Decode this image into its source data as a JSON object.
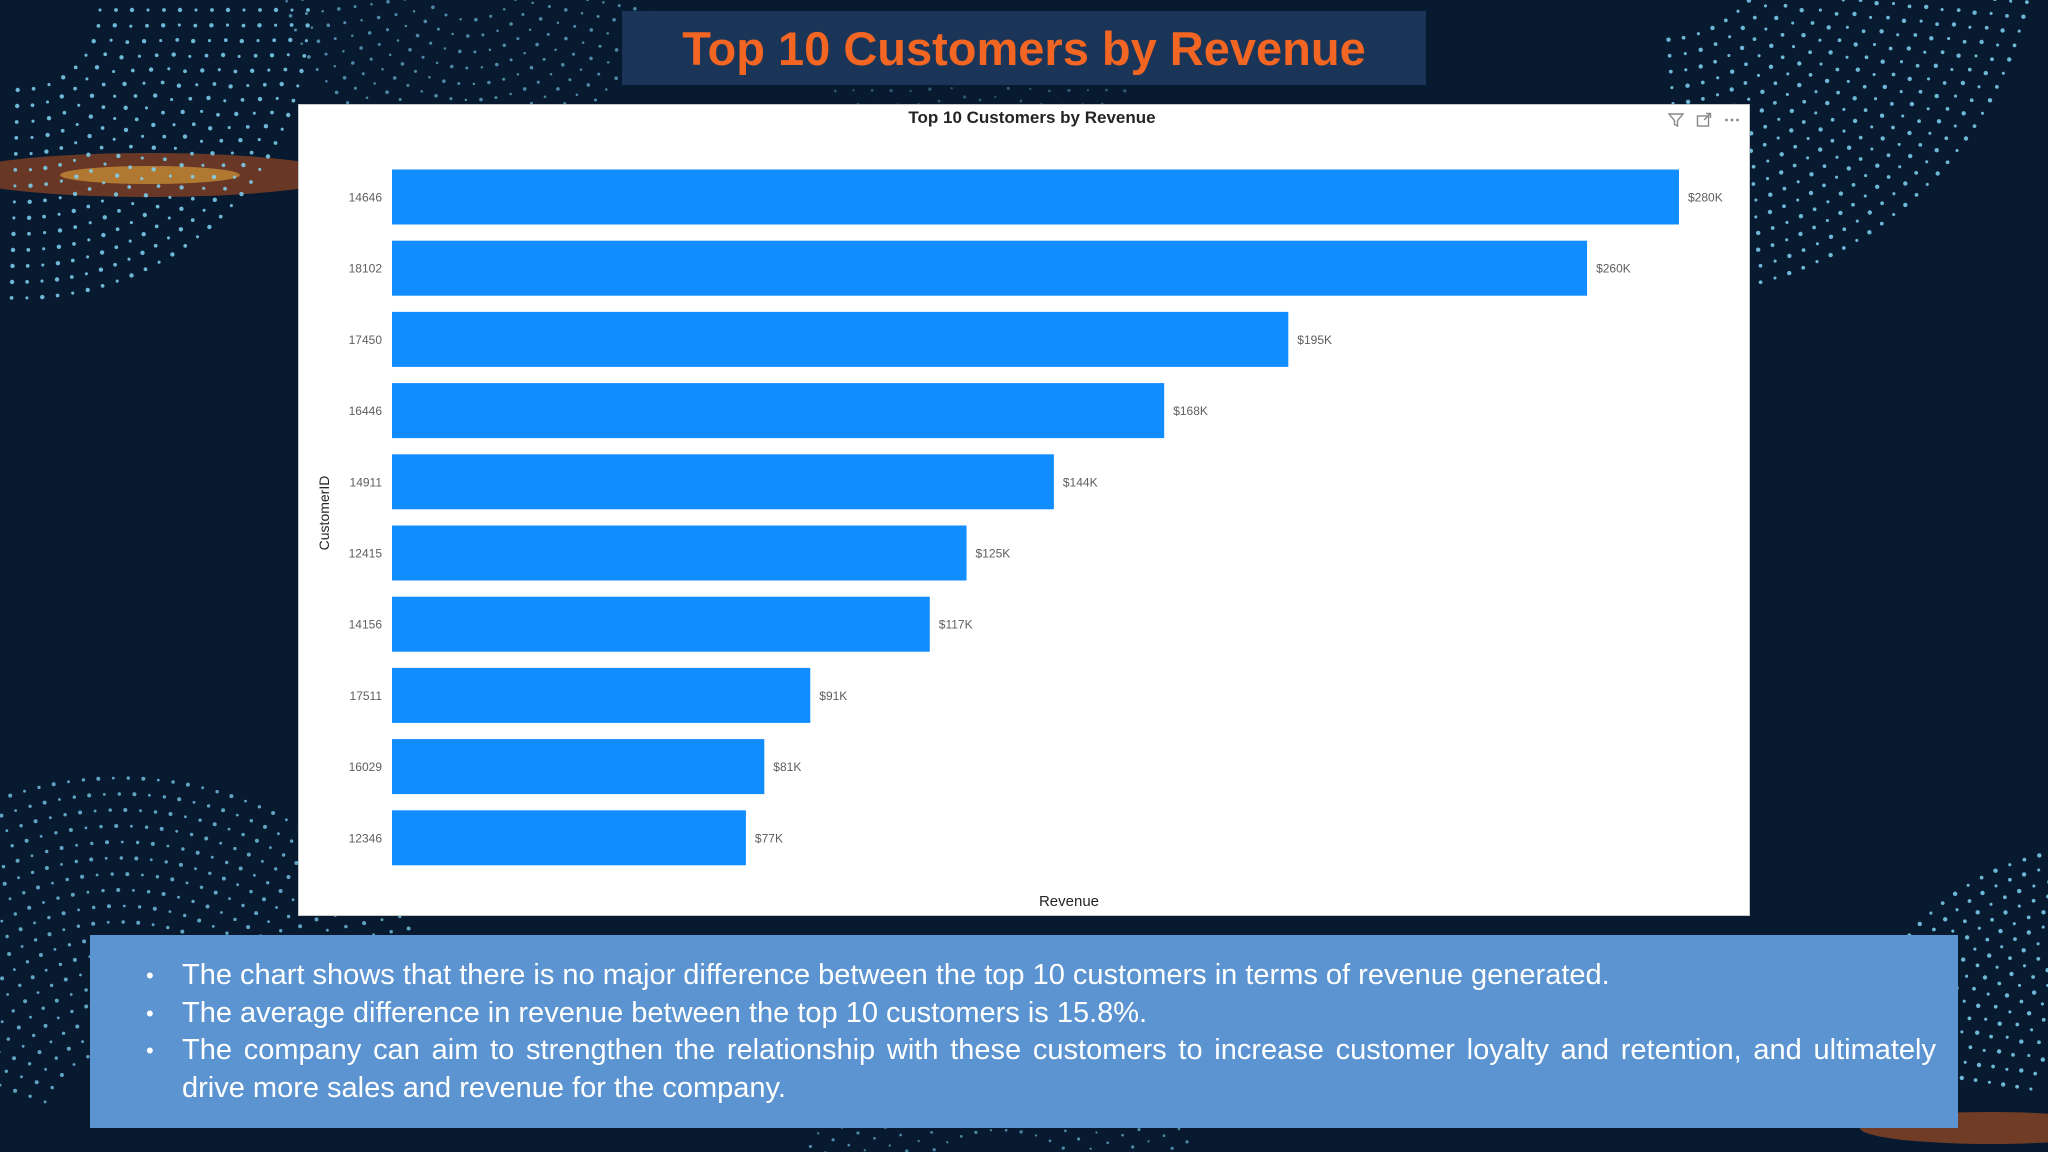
{
  "slide": {
    "title": "Top 10 Customers by Revenue"
  },
  "colors": {
    "background": "#071a30",
    "title_bg": "#1a3558",
    "title_text": "#f26522",
    "bar": "#118dff",
    "notes_bg": "#5b94d1",
    "dots": "#7fd3f5"
  },
  "toolbar": {
    "icons": [
      "filter-icon",
      "focus-mode-icon",
      "more-options-icon"
    ]
  },
  "chart_data": {
    "type": "bar",
    "orientation": "horizontal",
    "title": "Top 10 Customers by Revenue",
    "xlabel": "Revenue",
    "ylabel": "CustomerID",
    "xlim": [
      0,
      280
    ],
    "categories": [
      "14646",
      "18102",
      "17450",
      "16446",
      "14911",
      "12415",
      "14156",
      "17511",
      "16029",
      "12346"
    ],
    "values": [
      280,
      260,
      195,
      168,
      144,
      125,
      117,
      91,
      81,
      77
    ],
    "labels": [
      "$280K",
      "$260K",
      "$195K",
      "$168K",
      "$144K",
      "$125K",
      "$117K",
      "$91K",
      "$81K",
      "$77K"
    ],
    "grid": false
  },
  "notes": {
    "bullet": "•",
    "items": [
      "The chart shows that there is no major difference between the top 10 customers in terms of revenue generated.",
      "The average difference in revenue between the top 10 customers is 15.8%.",
      "The company can aim to strengthen the relationship with these customers to increase customer loyalty and retention, and ultimately drive more sales and revenue for the company."
    ]
  }
}
